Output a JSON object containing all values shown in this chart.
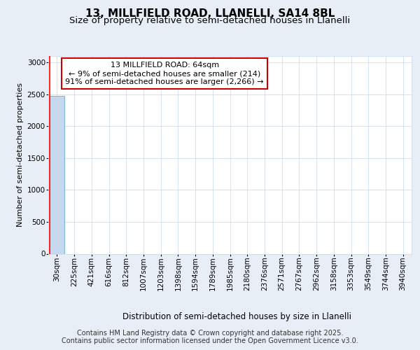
{
  "title_line1": "13, MILLFIELD ROAD, LLANELLI, SA14 8BL",
  "title_line2": "Size of property relative to semi-detached houses in Llanelli",
  "xlabel": "Distribution of semi-detached houses by size in Llanelli",
  "ylabel": "Number of semi-detached properties",
  "annotation_line1": "13 MILLFIELD ROAD: 64sqm",
  "annotation_line2": "← 9% of semi-detached houses are smaller (214)",
  "annotation_line3": "91% of semi-detached houses are larger (2,266) →",
  "footer_line1": "Contains HM Land Registry data © Crown copyright and database right 2025.",
  "footer_line2": "Contains public sector information licensed under the Open Government Licence v3.0.",
  "bar_labels": [
    "30sqm",
    "225sqm",
    "421sqm",
    "616sqm",
    "812sqm",
    "1007sqm",
    "1203sqm",
    "1398sqm",
    "1594sqm",
    "1789sqm",
    "1985sqm",
    "2180sqm",
    "2376sqm",
    "2571sqm",
    "2767sqm",
    "2962sqm",
    "3158sqm",
    "3353sqm",
    "3549sqm",
    "3744sqm",
    "3940sqm"
  ],
  "bar_values": [
    2480,
    0,
    0,
    0,
    0,
    0,
    0,
    0,
    0,
    0,
    0,
    0,
    0,
    0,
    0,
    0,
    0,
    0,
    0,
    0,
    0
  ],
  "bar_color": "#c5d8ee",
  "bar_edge_color": "#6aaad4",
  "red_line_bar_index": 0,
  "ylim": [
    0,
    3100
  ],
  "yticks": [
    0,
    500,
    1000,
    1500,
    2000,
    2500,
    3000
  ],
  "background_color": "#e8eef5",
  "plot_background": "#ffffff",
  "grid_color": "#c8d8eb",
  "annotation_box_facecolor": "#ffffff",
  "annotation_border_color": "#cc0000",
  "title_fontsize": 11,
  "subtitle_fontsize": 9.5,
  "ylabel_fontsize": 8,
  "xlabel_fontsize": 8.5,
  "tick_fontsize": 7.5,
  "annotation_fontsize": 8,
  "footer_fontsize": 7
}
